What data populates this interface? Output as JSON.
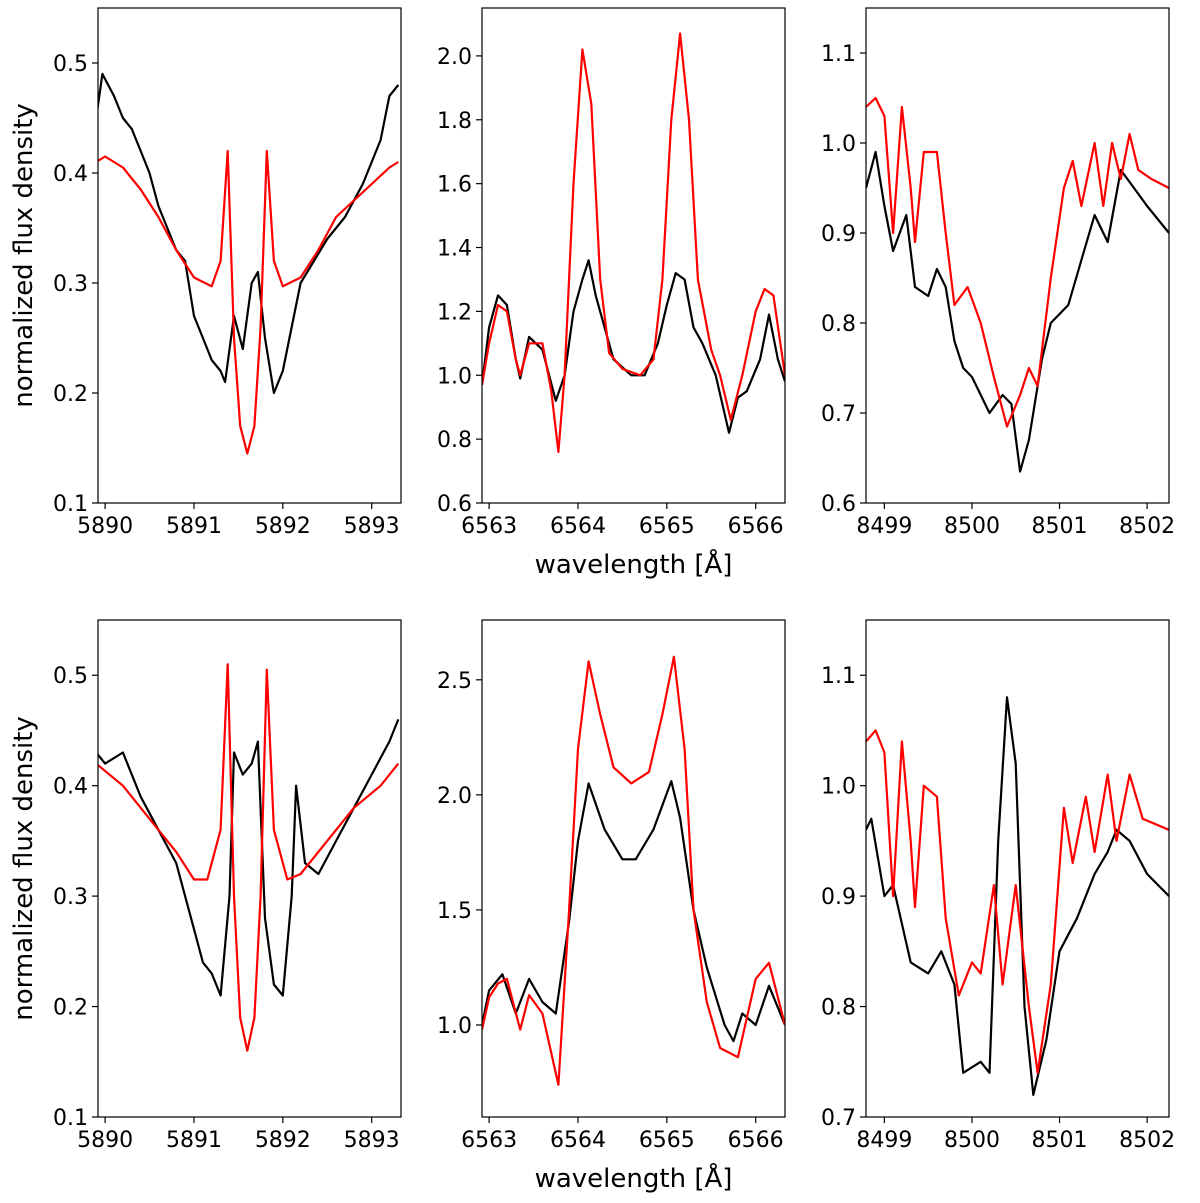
{
  "chart_data": [
    {
      "type": "line",
      "row": 1,
      "col": 1,
      "ylabel": "normalized flux density",
      "xlabel": "",
      "xlim": [
        5889.92,
        5893.33
      ],
      "ylim": [
        0.1,
        0.55
      ],
      "xticks": [
        5890,
        5891,
        5892,
        5893
      ],
      "yticks": [
        0.1,
        0.2,
        0.3,
        0.4,
        0.5
      ],
      "series": [
        {
          "color": "#000000",
          "x": [
            5889.9,
            5889.97,
            5890.1,
            5890.2,
            5890.3,
            5890.4,
            5890.5,
            5890.6,
            5890.7,
            5890.8,
            5890.9,
            5891.0,
            5891.1,
            5891.2,
            5891.3,
            5891.35,
            5891.45,
            5891.55,
            5891.65,
            5891.72,
            5891.8,
            5891.9,
            5892.0,
            5892.1,
            5892.2,
            5892.35,
            5892.5,
            5892.7,
            5892.9,
            5893.1,
            5893.2,
            5893.3
          ],
          "y": [
            0.45,
            0.49,
            0.47,
            0.45,
            0.44,
            0.42,
            0.4,
            0.37,
            0.35,
            0.33,
            0.32,
            0.27,
            0.25,
            0.23,
            0.22,
            0.21,
            0.27,
            0.24,
            0.3,
            0.31,
            0.25,
            0.2,
            0.22,
            0.26,
            0.3,
            0.32,
            0.34,
            0.36,
            0.39,
            0.43,
            0.47,
            0.48
          ]
        },
        {
          "color": "#ff0000",
          "x": [
            5889.9,
            5890.0,
            5890.2,
            5890.4,
            5890.6,
            5890.8,
            5891.0,
            5891.2,
            5891.3,
            5891.38,
            5891.45,
            5891.52,
            5891.6,
            5891.68,
            5891.75,
            5891.82,
            5891.9,
            5892.0,
            5892.2,
            5892.4,
            5892.6,
            5892.8,
            5893.0,
            5893.2,
            5893.3
          ],
          "y": [
            0.41,
            0.415,
            0.405,
            0.385,
            0.36,
            0.33,
            0.305,
            0.297,
            0.32,
            0.42,
            0.25,
            0.17,
            0.145,
            0.17,
            0.26,
            0.42,
            0.32,
            0.297,
            0.305,
            0.33,
            0.36,
            0.375,
            0.39,
            0.405,
            0.41
          ]
        }
      ]
    },
    {
      "type": "line",
      "row": 1,
      "col": 2,
      "ylabel": "",
      "xlabel": "wavelength [Å]",
      "xlim": [
        6562.92,
        6566.33
      ],
      "ylim": [
        0.6,
        2.15
      ],
      "xticks": [
        6563,
        6564,
        6565,
        6566
      ],
      "yticks": [
        0.6,
        0.8,
        1.0,
        1.2,
        1.4,
        1.6,
        1.8,
        2.0
      ],
      "series": [
        {
          "color": "#000000",
          "x": [
            6562.92,
            6563.0,
            6563.1,
            6563.2,
            6563.3,
            6563.35,
            6563.45,
            6563.6,
            6563.75,
            6563.85,
            6563.95,
            6564.05,
            6564.12,
            6564.2,
            6564.3,
            6564.4,
            6564.6,
            6564.75,
            6564.9,
            6565.0,
            6565.1,
            6565.2,
            6565.3,
            6565.4,
            6565.55,
            6565.7,
            6565.8,
            6565.9,
            6566.05,
            6566.15,
            6566.25,
            6566.33
          ],
          "y": [
            0.97,
            1.15,
            1.25,
            1.22,
            1.05,
            0.99,
            1.12,
            1.08,
            0.92,
            1.0,
            1.2,
            1.3,
            1.36,
            1.25,
            1.15,
            1.05,
            1.0,
            1.0,
            1.1,
            1.22,
            1.32,
            1.3,
            1.15,
            1.1,
            1.0,
            0.82,
            0.93,
            0.95,
            1.05,
            1.19,
            1.05,
            0.98
          ]
        },
        {
          "color": "#ff0000",
          "x": [
            6562.92,
            6563.0,
            6563.1,
            6563.2,
            6563.3,
            6563.35,
            6563.45,
            6563.6,
            6563.7,
            6563.78,
            6563.85,
            6563.95,
            6564.05,
            6564.15,
            6564.25,
            6564.35,
            6564.5,
            6564.7,
            6564.85,
            6564.95,
            6565.05,
            6565.15,
            6565.25,
            6565.35,
            6565.5,
            6565.6,
            6565.72,
            6565.85,
            6566.0,
            6566.1,
            6566.2,
            6566.33
          ],
          "y": [
            0.97,
            1.1,
            1.22,
            1.2,
            1.05,
            1.0,
            1.1,
            1.1,
            0.95,
            0.76,
            1.0,
            1.6,
            2.02,
            1.85,
            1.3,
            1.07,
            1.02,
            1.0,
            1.05,
            1.3,
            1.8,
            2.07,
            1.8,
            1.3,
            1.08,
            1.0,
            0.86,
            1.0,
            1.2,
            1.27,
            1.25,
            1.0
          ]
        }
      ]
    },
    {
      "type": "line",
      "row": 1,
      "col": 3,
      "ylabel": "",
      "xlabel": "",
      "xlim": [
        8498.79,
        8502.25
      ],
      "ylim": [
        0.6,
        1.15
      ],
      "xticks": [
        8499,
        8500,
        8501,
        8502
      ],
      "yticks": [
        0.6,
        0.7,
        0.8,
        0.9,
        1.0,
        1.1
      ],
      "series": [
        {
          "color": "#000000",
          "x": [
            8498.79,
            8498.9,
            8499.0,
            8499.1,
            8499.25,
            8499.35,
            8499.5,
            8499.6,
            8499.7,
            8499.8,
            8499.9,
            8500.0,
            8500.2,
            8500.35,
            8500.45,
            8500.55,
            8500.65,
            8500.8,
            8500.9,
            8501.1,
            8501.25,
            8501.4,
            8501.55,
            8501.7,
            8501.85,
            8502.0,
            8502.25
          ],
          "y": [
            0.95,
            0.99,
            0.93,
            0.88,
            0.92,
            0.84,
            0.83,
            0.86,
            0.84,
            0.78,
            0.75,
            0.74,
            0.7,
            0.72,
            0.71,
            0.635,
            0.67,
            0.76,
            0.8,
            0.82,
            0.87,
            0.92,
            0.89,
            0.97,
            0.95,
            0.93,
            0.9
          ]
        },
        {
          "color": "#ff0000",
          "x": [
            8498.79,
            8498.9,
            8499.0,
            8499.1,
            8499.2,
            8499.3,
            8499.35,
            8499.45,
            8499.6,
            8499.7,
            8499.8,
            8499.95,
            8500.1,
            8500.25,
            8500.4,
            8500.55,
            8500.65,
            8500.75,
            8500.9,
            8501.05,
            8501.15,
            8501.25,
            8501.4,
            8501.5,
            8501.6,
            8501.7,
            8501.8,
            8501.9,
            8502.05,
            8502.25
          ],
          "y": [
            1.04,
            1.05,
            1.03,
            0.9,
            1.04,
            0.95,
            0.89,
            0.99,
            0.99,
            0.9,
            0.82,
            0.84,
            0.8,
            0.74,
            0.685,
            0.72,
            0.75,
            0.73,
            0.85,
            0.95,
            0.98,
            0.93,
            1.0,
            0.93,
            1.0,
            0.96,
            1.01,
            0.97,
            0.96,
            0.95
          ]
        }
      ]
    },
    {
      "type": "line",
      "row": 2,
      "col": 1,
      "ylabel": "normalized flux density",
      "xlabel": "",
      "xlim": [
        5889.92,
        5893.33
      ],
      "ylim": [
        0.1,
        0.55
      ],
      "xticks": [
        5890,
        5891,
        5892,
        5893
      ],
      "yticks": [
        0.1,
        0.2,
        0.3,
        0.4,
        0.5
      ],
      "series": [
        {
          "color": "#000000",
          "x": [
            5889.9,
            5890.0,
            5890.2,
            5890.4,
            5890.6,
            5890.8,
            5890.9,
            5891.0,
            5891.1,
            5891.2,
            5891.3,
            5891.4,
            5891.45,
            5891.55,
            5891.65,
            5891.72,
            5891.8,
            5891.9,
            5892.0,
            5892.1,
            5892.15,
            5892.25,
            5892.4,
            5892.6,
            5892.8,
            5893.0,
            5893.2,
            5893.3
          ],
          "y": [
            0.43,
            0.42,
            0.43,
            0.39,
            0.36,
            0.33,
            0.3,
            0.27,
            0.24,
            0.23,
            0.21,
            0.3,
            0.43,
            0.41,
            0.42,
            0.44,
            0.28,
            0.22,
            0.21,
            0.3,
            0.4,
            0.33,
            0.32,
            0.35,
            0.38,
            0.41,
            0.44,
            0.46
          ]
        },
        {
          "color": "#ff0000",
          "x": [
            5889.9,
            5890.2,
            5890.5,
            5890.8,
            5891.0,
            5891.15,
            5891.3,
            5891.38,
            5891.45,
            5891.52,
            5891.6,
            5891.68,
            5891.75,
            5891.82,
            5891.9,
            5892.05,
            5892.2,
            5892.5,
            5892.8,
            5893.1,
            5893.3
          ],
          "y": [
            0.42,
            0.4,
            0.37,
            0.34,
            0.315,
            0.315,
            0.36,
            0.51,
            0.3,
            0.19,
            0.16,
            0.19,
            0.3,
            0.505,
            0.36,
            0.315,
            0.32,
            0.35,
            0.38,
            0.4,
            0.42
          ]
        }
      ]
    },
    {
      "type": "line",
      "row": 2,
      "col": 2,
      "ylabel": "",
      "xlabel": "wavelength [Å]",
      "xlim": [
        6562.92,
        6566.33
      ],
      "ylim": [
        0.6,
        2.76
      ],
      "xticks": [
        6563,
        6564,
        6565,
        6566
      ],
      "yticks": [
        1.0,
        1.5,
        2.0,
        2.5
      ],
      "series": [
        {
          "color": "#000000",
          "x": [
            6562.92,
            6563.0,
            6563.15,
            6563.3,
            6563.45,
            6563.6,
            6563.75,
            6563.9,
            6564.0,
            6564.12,
            6564.3,
            6564.5,
            6564.65,
            6564.85,
            6565.05,
            6565.15,
            6565.3,
            6565.45,
            6565.65,
            6565.75,
            6565.85,
            6566.0,
            6566.15,
            6566.33
          ],
          "y": [
            1.0,
            1.15,
            1.22,
            1.05,
            1.2,
            1.1,
            1.05,
            1.45,
            1.8,
            2.05,
            1.85,
            1.72,
            1.72,
            1.85,
            2.06,
            1.9,
            1.5,
            1.25,
            1.0,
            0.93,
            1.05,
            1.0,
            1.17,
            1.0
          ]
        },
        {
          "color": "#ff0000",
          "x": [
            6562.92,
            6563.0,
            6563.1,
            6563.2,
            6563.35,
            6563.45,
            6563.6,
            6563.78,
            6563.9,
            6564.0,
            6564.12,
            6564.25,
            6564.4,
            6564.6,
            6564.8,
            6564.95,
            6565.08,
            6565.2,
            6565.3,
            6565.45,
            6565.6,
            6565.8,
            6566.0,
            6566.15,
            6566.33
          ],
          "y": [
            0.98,
            1.12,
            1.18,
            1.2,
            0.98,
            1.13,
            1.05,
            0.74,
            1.5,
            2.2,
            2.58,
            2.35,
            2.12,
            2.05,
            2.1,
            2.35,
            2.6,
            2.2,
            1.5,
            1.1,
            0.9,
            0.86,
            1.2,
            1.27,
            1.0
          ]
        }
      ]
    },
    {
      "type": "line",
      "row": 2,
      "col": 3,
      "ylabel": "",
      "xlabel": "",
      "xlim": [
        8498.79,
        8502.25
      ],
      "ylim": [
        0.7,
        1.15
      ],
      "xticks": [
        8499,
        8500,
        8501,
        8502
      ],
      "yticks": [
        0.7,
        0.8,
        0.9,
        1.0,
        1.1
      ],
      "series": [
        {
          "color": "#000000",
          "x": [
            8498.79,
            8498.85,
            8499.0,
            8499.1,
            8499.3,
            8499.5,
            8499.65,
            8499.8,
            8499.9,
            8500.1,
            8500.2,
            8500.3,
            8500.4,
            8500.5,
            8500.6,
            8500.7,
            8500.85,
            8501.0,
            8501.2,
            8501.4,
            8501.55,
            8501.65,
            8501.8,
            8502.0,
            8502.25
          ],
          "y": [
            0.96,
            0.97,
            0.9,
            0.91,
            0.84,
            0.83,
            0.85,
            0.82,
            0.74,
            0.75,
            0.74,
            0.95,
            1.08,
            1.02,
            0.8,
            0.72,
            0.77,
            0.85,
            0.88,
            0.92,
            0.94,
            0.96,
            0.95,
            0.92,
            0.9
          ]
        },
        {
          "color": "#ff0000",
          "x": [
            8498.79,
            8498.9,
            8499.0,
            8499.1,
            8499.2,
            8499.3,
            8499.35,
            8499.45,
            8499.6,
            8499.7,
            8499.85,
            8500.0,
            8500.1,
            8500.25,
            8500.35,
            8500.5,
            8500.65,
            8500.75,
            8500.9,
            8501.05,
            8501.15,
            8501.3,
            8501.4,
            8501.55,
            8501.65,
            8501.8,
            8501.95,
            8502.25
          ],
          "y": [
            1.04,
            1.05,
            1.03,
            0.9,
            1.04,
            0.95,
            0.89,
            1.0,
            0.99,
            0.88,
            0.81,
            0.84,
            0.83,
            0.91,
            0.82,
            0.91,
            0.8,
            0.74,
            0.82,
            0.98,
            0.93,
            0.99,
            0.94,
            1.01,
            0.95,
            1.01,
            0.97,
            0.96
          ]
        }
      ]
    }
  ]
}
